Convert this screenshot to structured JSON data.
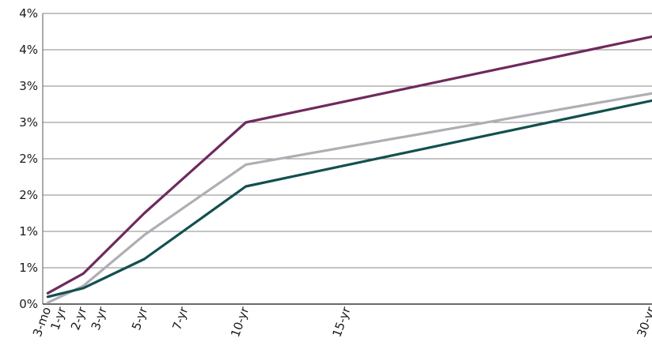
{
  "chart_data": {
    "type": "line",
    "x_categories": [
      "3-mo",
      "1-yr",
      "2-yr",
      "3-yr",
      "5-yr",
      "7-yr",
      "10-yr",
      "15-yr",
      "30-yr"
    ],
    "x_years": [
      0.25,
      1,
      2,
      3,
      5,
      7,
      10,
      15,
      30
    ],
    "y_tick_labels": [
      "0%",
      "1%",
      "1%",
      "2%",
      "2%",
      "3%",
      "3%",
      "4%",
      "4%"
    ],
    "y_tick_values": [
      0,
      0.5,
      1.0,
      1.5,
      2.0,
      2.5,
      3.0,
      3.5,
      4.0
    ],
    "ylim": [
      0,
      4.0
    ],
    "grid": true,
    "series": [
      {
        "color": "#6e2a5e",
        "points": [
          [
            0.25,
            0.15
          ],
          [
            2,
            0.42
          ],
          [
            5,
            1.25
          ],
          [
            10,
            2.5
          ],
          [
            30,
            3.68
          ]
        ]
      },
      {
        "color": "#b0aeb4",
        "points": [
          [
            0.25,
            0.02
          ],
          [
            2,
            0.25
          ],
          [
            5,
            0.95
          ],
          [
            10,
            1.92
          ],
          [
            30,
            2.9
          ]
        ]
      },
      {
        "color": "#12504e",
        "points": [
          [
            0.25,
            0.1
          ],
          [
            2,
            0.22
          ],
          [
            5,
            0.62
          ],
          [
            10,
            1.62
          ],
          [
            30,
            2.8
          ]
        ]
      }
    ]
  }
}
